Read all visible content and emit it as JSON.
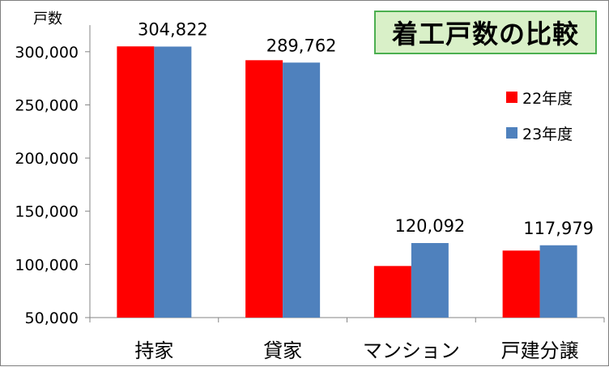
{
  "chart_data": {
    "type": "bar",
    "title": "着工戸数の比較",
    "ylabel": "戸数",
    "categories": [
      "持家",
      "貸家",
      "マンション",
      "戸建分譲"
    ],
    "series": [
      {
        "name": "22年度",
        "color": "#ff0000",
        "values": [
          305000,
          292000,
          98500,
          113000
        ]
      },
      {
        "name": "23年度",
        "color": "#4f81bd",
        "values": [
          304822,
          289762,
          120092,
          117979
        ]
      }
    ],
    "data_labels": [
      "304,822",
      "289,762",
      "120,092",
      "117,979"
    ],
    "ylim": [
      50000,
      325000
    ],
    "yticks": [
      50000,
      100000,
      150000,
      200000,
      250000,
      300000
    ],
    "ytick_labels": [
      "50,000",
      "100,000",
      "150,000",
      "200,000",
      "250,000",
      "300,000"
    ],
    "grid": false,
    "legend_position": "right"
  }
}
